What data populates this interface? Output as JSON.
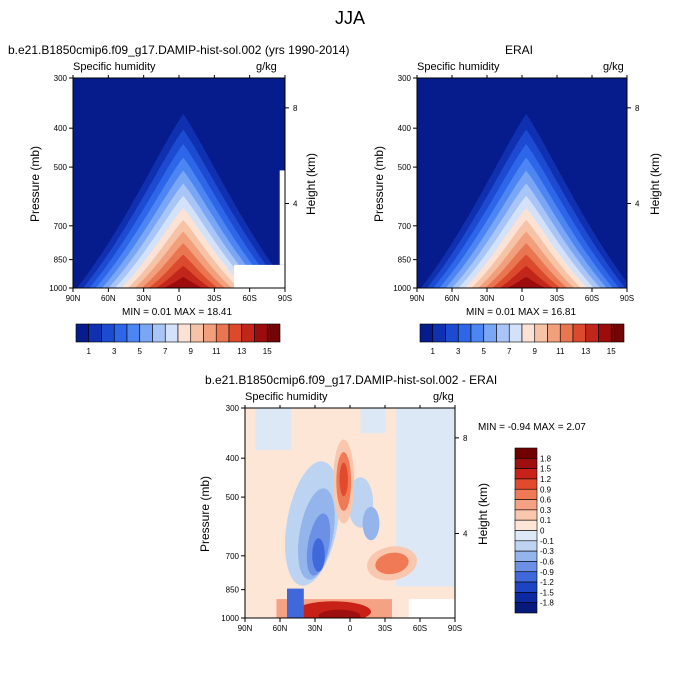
{
  "page": {
    "title": "JJA"
  },
  "panels": [
    {
      "id": "model",
      "title": "b.e21.B1850cmip6.f09_g17.DAMIP-hist-sol.002 (yrs 1990-2014)",
      "left_label": "Specific humidity",
      "right_label": "g/kg",
      "ylabel": "Pressure (mb)",
      "y2label": "Height (km)",
      "minmax": "MIN =   0.01   MAX =  18.41"
    },
    {
      "id": "erai",
      "title": "ERAI",
      "left_label": "Specific humidity",
      "right_label": "g/kg",
      "ylabel": "Pressure (mb)",
      "y2label": "Height (km)",
      "minmax": "MIN =   0.01   MAX =  16.81"
    },
    {
      "id": "diff",
      "title": "b.e21.B1850cmip6.f09_g17.DAMIP-hist-sol.002 - ERAI",
      "left_label": "Specific humidity",
      "right_label": "g/kg",
      "ylabel": "Pressure (mb)",
      "y2label": "Height (km)",
      "minmax": "MIN =  -0.94   MAX =   2.07"
    }
  ],
  "chart_data": [
    {
      "type": "heatmap",
      "title": "b.e21.B1850cmip6.f09_g17.DAMIP-hist-sol.002 (yrs 1990-2014)",
      "field": "Specific humidity",
      "units": "g/kg",
      "x_ticks": [
        "90N",
        "60N",
        "30N",
        "0",
        "30S",
        "60S",
        "90S"
      ],
      "x_lat": [
        90,
        60,
        30,
        0,
        -30,
        -60,
        -90
      ],
      "y_ticks": [
        "300",
        "400",
        "500",
        "700",
        "850",
        "1000"
      ],
      "y_pressure": [
        300,
        400,
        500,
        700,
        850,
        1000
      ],
      "y_scale": "log",
      "y2_ticks": [
        "8",
        "4"
      ],
      "ylabel": "Pressure (mb)",
      "y2label": "Height (km)",
      "min": 0.01,
      "max": 18.41,
      "colorbar_levels": [
        "1",
        "3",
        "5",
        "7",
        "9",
        "11",
        "13",
        "15"
      ],
      "colorbar_orientation": "horizontal"
    },
    {
      "type": "heatmap",
      "title": "ERAI",
      "field": "Specific humidity",
      "units": "g/kg",
      "x_ticks": [
        "90N",
        "60N",
        "30N",
        "0",
        "30S",
        "60S",
        "90S"
      ],
      "x_lat": [
        90,
        60,
        30,
        0,
        -30,
        -60,
        -90
      ],
      "y_ticks": [
        "300",
        "400",
        "500",
        "700",
        "850",
        "1000"
      ],
      "y_pressure": [
        300,
        400,
        500,
        700,
        850,
        1000
      ],
      "y_scale": "log",
      "y2_ticks": [
        "8",
        "4"
      ],
      "ylabel": "Pressure (mb)",
      "y2label": "Height (km)",
      "min": 0.01,
      "max": 16.81,
      "colorbar_levels": [
        "1",
        "3",
        "5",
        "7",
        "9",
        "11",
        "13",
        "15"
      ],
      "colorbar_orientation": "horizontal"
    },
    {
      "type": "heatmap",
      "title": "b.e21.B1850cmip6.f09_g17.DAMIP-hist-sol.002 - ERAI",
      "field": "Specific humidity",
      "units": "g/kg",
      "x_ticks": [
        "90N",
        "60N",
        "30N",
        "0",
        "30S",
        "60S",
        "90S"
      ],
      "x_lat": [
        90,
        60,
        30,
        0,
        -30,
        -60,
        -90
      ],
      "y_ticks": [
        "300",
        "400",
        "500",
        "700",
        "850",
        "1000"
      ],
      "y_pressure": [
        300,
        400,
        500,
        700,
        850,
        1000
      ],
      "y_scale": "log",
      "y2_ticks": [
        "8",
        "4"
      ],
      "ylabel": "Pressure (mb)",
      "y2label": "Height (km)",
      "min": -0.94,
      "max": 2.07,
      "colorbar_levels": [
        "1.8",
        "1.5",
        "1.2",
        "0.9",
        "0.6",
        "0.3",
        "0.1",
        "0",
        "-0.1",
        "-0.3",
        "-0.6",
        "-0.9",
        "-1.2",
        "-1.5",
        "-1.8"
      ],
      "colorbar_orientation": "vertical"
    }
  ],
  "colors": {
    "abs_scale": [
      "#061b8c",
      "#0f31b0",
      "#1c4ad0",
      "#2d66e8",
      "#4d86f2",
      "#7aa6f6",
      "#a9c5f8",
      "#d3e2f8",
      "#fbe2d4",
      "#f7c3a6",
      "#f29f7c",
      "#ea7551",
      "#dc4a2e",
      "#c2261a",
      "#9c0c0c",
      "#720606"
    ],
    "diff_scale": [
      "#700000",
      "#9e0f0f",
      "#c82218",
      "#e14a2c",
      "#ef7a55",
      "#f5a284",
      "#f9c7ae",
      "#fde6d6",
      "#dce8f6",
      "#bcd3f2",
      "#94b4ec",
      "#6c90e6",
      "#4068da",
      "#1e44c4",
      "#0b2aa0",
      "#061a7c"
    ]
  }
}
